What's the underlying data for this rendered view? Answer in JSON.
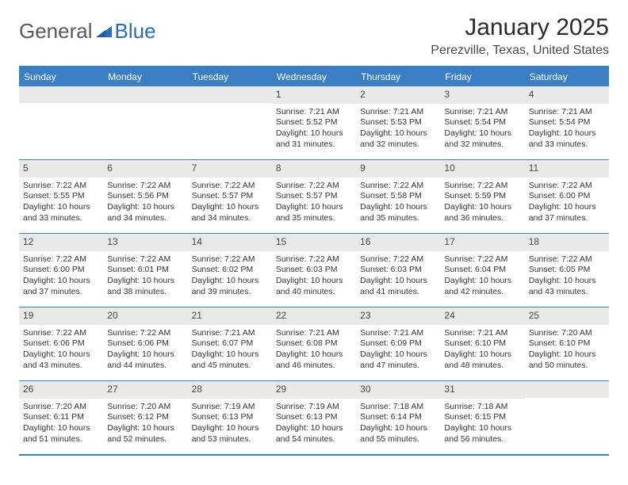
{
  "brand": {
    "word1": "General",
    "word2": "Blue",
    "icon_color": "#2a6db8",
    "text_color_gray": "#5a5a5a"
  },
  "header": {
    "month_title": "January 2025",
    "location": "Perezville, Texas, United States"
  },
  "styling": {
    "accent_color": "#3a7fc4",
    "header_text_color": "#ffffff",
    "daynum_bg": "#e9e9e9",
    "body_text_color": "#333333",
    "background": "#ffffff",
    "font_family": "Arial",
    "month_title_fontsize": 30,
    "location_fontsize": 16,
    "dayheader_fontsize": 12,
    "cell_fontsize": 10.5
  },
  "day_names": [
    "Sunday",
    "Monday",
    "Tuesday",
    "Wednesday",
    "Thursday",
    "Friday",
    "Saturday"
  ],
  "weeks": [
    [
      {
        "blank": true
      },
      {
        "blank": true
      },
      {
        "blank": true
      },
      {
        "day": "1",
        "sunrise": "Sunrise: 7:21 AM",
        "sunset": "Sunset: 5:52 PM",
        "daylight1": "Daylight: 10 hours",
        "daylight2": "and 31 minutes."
      },
      {
        "day": "2",
        "sunrise": "Sunrise: 7:21 AM",
        "sunset": "Sunset: 5:53 PM",
        "daylight1": "Daylight: 10 hours",
        "daylight2": "and 32 minutes."
      },
      {
        "day": "3",
        "sunrise": "Sunrise: 7:21 AM",
        "sunset": "Sunset: 5:54 PM",
        "daylight1": "Daylight: 10 hours",
        "daylight2": "and 32 minutes."
      },
      {
        "day": "4",
        "sunrise": "Sunrise: 7:21 AM",
        "sunset": "Sunset: 5:54 PM",
        "daylight1": "Daylight: 10 hours",
        "daylight2": "and 33 minutes."
      }
    ],
    [
      {
        "day": "5",
        "sunrise": "Sunrise: 7:22 AM",
        "sunset": "Sunset: 5:55 PM",
        "daylight1": "Daylight: 10 hours",
        "daylight2": "and 33 minutes."
      },
      {
        "day": "6",
        "sunrise": "Sunrise: 7:22 AM",
        "sunset": "Sunset: 5:56 PM",
        "daylight1": "Daylight: 10 hours",
        "daylight2": "and 34 minutes."
      },
      {
        "day": "7",
        "sunrise": "Sunrise: 7:22 AM",
        "sunset": "Sunset: 5:57 PM",
        "daylight1": "Daylight: 10 hours",
        "daylight2": "and 34 minutes."
      },
      {
        "day": "8",
        "sunrise": "Sunrise: 7:22 AM",
        "sunset": "Sunset: 5:57 PM",
        "daylight1": "Daylight: 10 hours",
        "daylight2": "and 35 minutes."
      },
      {
        "day": "9",
        "sunrise": "Sunrise: 7:22 AM",
        "sunset": "Sunset: 5:58 PM",
        "daylight1": "Daylight: 10 hours",
        "daylight2": "and 35 minutes."
      },
      {
        "day": "10",
        "sunrise": "Sunrise: 7:22 AM",
        "sunset": "Sunset: 5:59 PM",
        "daylight1": "Daylight: 10 hours",
        "daylight2": "and 36 minutes."
      },
      {
        "day": "11",
        "sunrise": "Sunrise: 7:22 AM",
        "sunset": "Sunset: 6:00 PM",
        "daylight1": "Daylight: 10 hours",
        "daylight2": "and 37 minutes."
      }
    ],
    [
      {
        "day": "12",
        "sunrise": "Sunrise: 7:22 AM",
        "sunset": "Sunset: 6:00 PM",
        "daylight1": "Daylight: 10 hours",
        "daylight2": "and 37 minutes."
      },
      {
        "day": "13",
        "sunrise": "Sunrise: 7:22 AM",
        "sunset": "Sunset: 6:01 PM",
        "daylight1": "Daylight: 10 hours",
        "daylight2": "and 38 minutes."
      },
      {
        "day": "14",
        "sunrise": "Sunrise: 7:22 AM",
        "sunset": "Sunset: 6:02 PM",
        "daylight1": "Daylight: 10 hours",
        "daylight2": "and 39 minutes."
      },
      {
        "day": "15",
        "sunrise": "Sunrise: 7:22 AM",
        "sunset": "Sunset: 6:03 PM",
        "daylight1": "Daylight: 10 hours",
        "daylight2": "and 40 minutes."
      },
      {
        "day": "16",
        "sunrise": "Sunrise: 7:22 AM",
        "sunset": "Sunset: 6:03 PM",
        "daylight1": "Daylight: 10 hours",
        "daylight2": "and 41 minutes."
      },
      {
        "day": "17",
        "sunrise": "Sunrise: 7:22 AM",
        "sunset": "Sunset: 6:04 PM",
        "daylight1": "Daylight: 10 hours",
        "daylight2": "and 42 minutes."
      },
      {
        "day": "18",
        "sunrise": "Sunrise: 7:22 AM",
        "sunset": "Sunset: 6:05 PM",
        "daylight1": "Daylight: 10 hours",
        "daylight2": "and 43 minutes."
      }
    ],
    [
      {
        "day": "19",
        "sunrise": "Sunrise: 7:22 AM",
        "sunset": "Sunset: 6:06 PM",
        "daylight1": "Daylight: 10 hours",
        "daylight2": "and 43 minutes."
      },
      {
        "day": "20",
        "sunrise": "Sunrise: 7:22 AM",
        "sunset": "Sunset: 6:06 PM",
        "daylight1": "Daylight: 10 hours",
        "daylight2": "and 44 minutes."
      },
      {
        "day": "21",
        "sunrise": "Sunrise: 7:21 AM",
        "sunset": "Sunset: 6:07 PM",
        "daylight1": "Daylight: 10 hours",
        "daylight2": "and 45 minutes."
      },
      {
        "day": "22",
        "sunrise": "Sunrise: 7:21 AM",
        "sunset": "Sunset: 6:08 PM",
        "daylight1": "Daylight: 10 hours",
        "daylight2": "and 46 minutes."
      },
      {
        "day": "23",
        "sunrise": "Sunrise: 7:21 AM",
        "sunset": "Sunset: 6:09 PM",
        "daylight1": "Daylight: 10 hours",
        "daylight2": "and 47 minutes."
      },
      {
        "day": "24",
        "sunrise": "Sunrise: 7:21 AM",
        "sunset": "Sunset: 6:10 PM",
        "daylight1": "Daylight: 10 hours",
        "daylight2": "and 48 minutes."
      },
      {
        "day": "25",
        "sunrise": "Sunrise: 7:20 AM",
        "sunset": "Sunset: 6:10 PM",
        "daylight1": "Daylight: 10 hours",
        "daylight2": "and 50 minutes."
      }
    ],
    [
      {
        "day": "26",
        "sunrise": "Sunrise: 7:20 AM",
        "sunset": "Sunset: 6:11 PM",
        "daylight1": "Daylight: 10 hours",
        "daylight2": "and 51 minutes."
      },
      {
        "day": "27",
        "sunrise": "Sunrise: 7:20 AM",
        "sunset": "Sunset: 6:12 PM",
        "daylight1": "Daylight: 10 hours",
        "daylight2": "and 52 minutes."
      },
      {
        "day": "28",
        "sunrise": "Sunrise: 7:19 AM",
        "sunset": "Sunset: 6:13 PM",
        "daylight1": "Daylight: 10 hours",
        "daylight2": "and 53 minutes."
      },
      {
        "day": "29",
        "sunrise": "Sunrise: 7:19 AM",
        "sunset": "Sunset: 6:13 PM",
        "daylight1": "Daylight: 10 hours",
        "daylight2": "and 54 minutes."
      },
      {
        "day": "30",
        "sunrise": "Sunrise: 7:18 AM",
        "sunset": "Sunset: 6:14 PM",
        "daylight1": "Daylight: 10 hours",
        "daylight2": "and 55 minutes."
      },
      {
        "day": "31",
        "sunrise": "Sunrise: 7:18 AM",
        "sunset": "Sunset: 6:15 PM",
        "daylight1": "Daylight: 10 hours",
        "daylight2": "and 56 minutes."
      },
      {
        "blank": true
      }
    ]
  ]
}
